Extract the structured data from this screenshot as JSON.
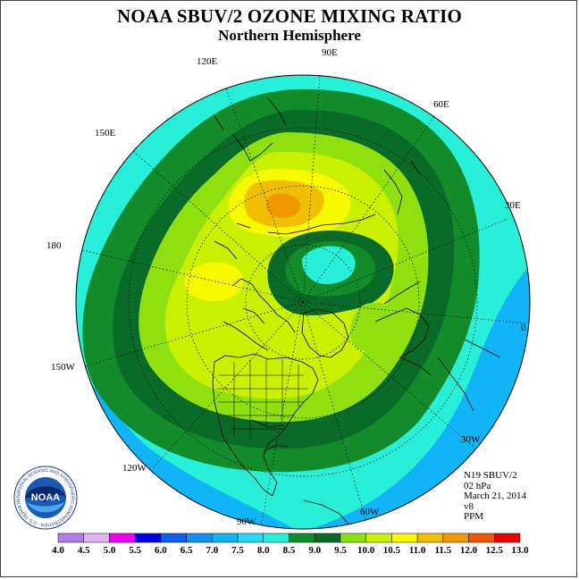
{
  "title": "NOAA SBUV/2 OZONE MIXING RATIO",
  "subtitle": "Northern Hemisphere",
  "longitude_labels": {
    "lon_90e": "90E",
    "lon_120e": "120E",
    "lon_60e": "60E",
    "lon_150e": "150E",
    "lon_30e": "30E",
    "lon_180": "180",
    "lon_0": "0",
    "lon_150w": "150W",
    "lon_30w": "30W",
    "lon_120w": "120W",
    "lon_60w": "60W",
    "lon_90w": "90W"
  },
  "info": {
    "instrument": "N19 SBUV/2",
    "level": "02 hPa",
    "date": "March 21, 2014",
    "version": "v8",
    "units": "PPM"
  },
  "logo": {
    "text": "NOAA",
    "ring_text": "NATIONAL OCEANIC AND ATMOSPHERIC ADMINISTRATION · U.S. DEPARTMENT OF COMMERCE"
  },
  "colorbar": {
    "ticks": [
      "4.0",
      "4.5",
      "5.0",
      "5.5",
      "6.0",
      "6.5",
      "7.0",
      "7.5",
      "8.0",
      "8.5",
      "9.0",
      "9.5",
      "10.0",
      "10.5",
      "11.0",
      "11.5",
      "12.0",
      "12.5",
      "13.0"
    ],
    "colors": [
      "#b07de8",
      "#e0b4f0",
      "#f000f0",
      "#0000e0",
      "#1060f0",
      "#1090f0",
      "#10b4f8",
      "#28d8f8",
      "#28f0d8",
      "#128c2a",
      "#0a6a28",
      "#90e010",
      "#c8f000",
      "#f8f800",
      "#f0c000",
      "#f09800",
      "#f05800",
      "#e80000",
      "#986040"
    ]
  },
  "map_colors": {
    "ocean_bg": "#28f0d8",
    "band_7_0": "#10b4f8",
    "band_8_0": "#28f0d8",
    "band_8_5": "#128c2a",
    "band_9_0": "#0a6a28",
    "band_9_5": "#90e010",
    "band_10_0": "#c8f000",
    "band_10_5": "#f8f800",
    "band_11_0": "#f0c000",
    "band_11_5": "#f09800"
  }
}
